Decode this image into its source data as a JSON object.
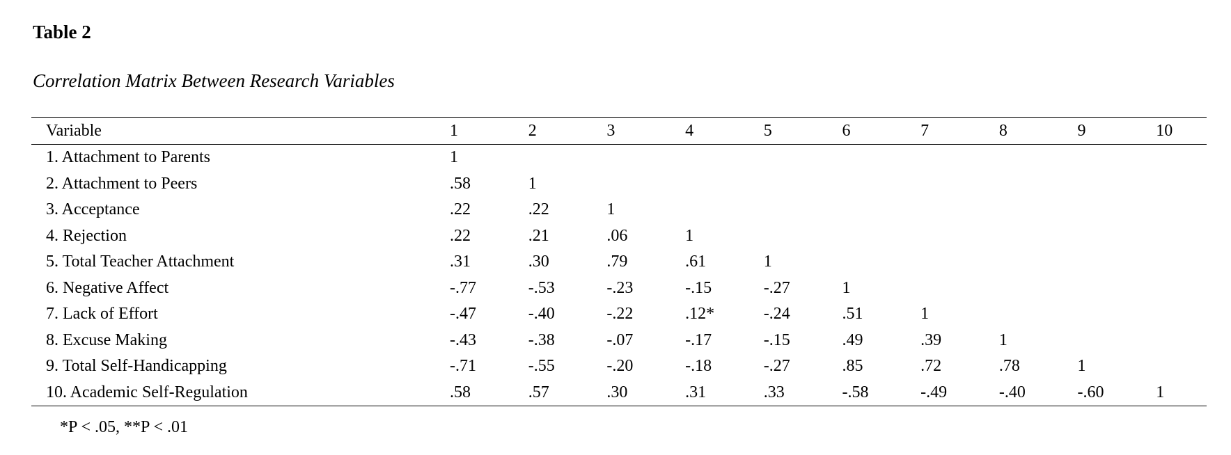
{
  "table": {
    "number": "Table 2",
    "title": "Correlation Matrix Between Research Variables",
    "header": {
      "variable": "Variable",
      "columns": [
        "1",
        "2",
        "3",
        "4",
        "5",
        "6",
        "7",
        "8",
        "9",
        "10"
      ]
    },
    "rows": [
      {
        "label": "1. Attachment to Parents",
        "values": [
          "1",
          "",
          "",
          "",
          "",
          "",
          "",
          "",
          "",
          ""
        ]
      },
      {
        "label": "2. Attachment to Peers",
        "values": [
          ".58",
          "1",
          "",
          "",
          "",
          "",
          "",
          "",
          "",
          ""
        ]
      },
      {
        "label": "3. Acceptance",
        "values": [
          ".22",
          ".22",
          "1",
          "",
          "",
          "",
          "",
          "",
          "",
          ""
        ]
      },
      {
        "label": "4. Rejection",
        "values": [
          ".22",
          ".21",
          ".06",
          "1",
          "",
          "",
          "",
          "",
          "",
          ""
        ]
      },
      {
        "label": "5. Total Teacher Attachment",
        "values": [
          ".31",
          ".30",
          ".79",
          ".61",
          "1",
          "",
          "",
          "",
          "",
          ""
        ]
      },
      {
        "label": "6. Negative Affect",
        "values": [
          "-.77",
          "-.53",
          "-.23",
          "-.15",
          "-.27",
          "1",
          "",
          "",
          "",
          ""
        ]
      },
      {
        "label": "7. Lack of Effort",
        "values": [
          "-.47",
          "-.40",
          "-.22",
          ".12*",
          "-.24",
          ".51",
          "1",
          "",
          "",
          ""
        ]
      },
      {
        "label": "8. Excuse Making",
        "values": [
          "-.43",
          "-.38",
          "-.07",
          "-.17",
          "-.15",
          ".49",
          ".39",
          "1",
          "",
          ""
        ]
      },
      {
        "label": "9. Total Self-Handicapping",
        "values": [
          "-.71",
          "-.55",
          "-.20",
          "-.18",
          "-.27",
          ".85",
          ".72",
          ".78",
          "1",
          ""
        ]
      },
      {
        "label": "10. Academic Self-Regulation",
        "values": [
          ".58",
          ".57",
          ".30",
          ".31",
          ".33",
          "-.58",
          "-.49",
          "-.40",
          "-.60",
          "1"
        ]
      }
    ],
    "note": "*P < .05, **P < .01"
  }
}
